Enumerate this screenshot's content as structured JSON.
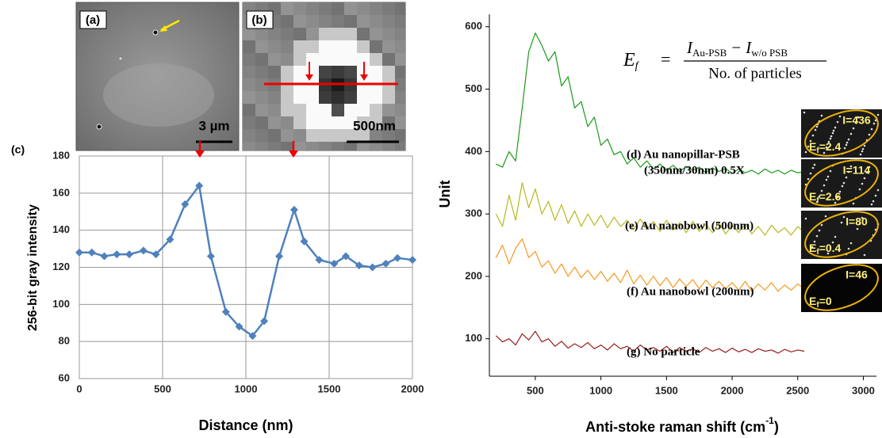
{
  "panels": {
    "a": {
      "label": "(a)",
      "scale": "3 µm"
    },
    "b": {
      "label": "(b)",
      "scale": "500nm"
    }
  },
  "chart_data": [
    {
      "type": "line",
      "panel_label": "(c)",
      "x_label": "Distance (nm)",
      "y_label": "256-bit gray intensity",
      "x": [
        0,
        75,
        150,
        225,
        300,
        385,
        460,
        545,
        635,
        720,
        790,
        880,
        960,
        1040,
        1110,
        1200,
        1290,
        1350,
        1440,
        1530,
        1600,
        1680,
        1760,
        1840,
        1910,
        2000
      ],
      "series": [
        {
          "color": "#4f81bd",
          "values": [
            128,
            128,
            126,
            127,
            127,
            129,
            127,
            135,
            154,
            164,
            126,
            96,
            88,
            83,
            91,
            126,
            151,
            134,
            124,
            122,
            126,
            121,
            120,
            122,
            125,
            124
          ]
        }
      ],
      "xlim": [
        0,
        2000
      ],
      "ylim": [
        60,
        180
      ],
      "xticks": [
        0,
        500,
        1000,
        1500,
        2000
      ],
      "yticks": [
        60,
        80,
        100,
        120,
        140,
        160,
        180
      ],
      "grid": true,
      "markers": "diamond"
    },
    {
      "type": "line",
      "x_label": "Anti-stoke raman shift (cm",
      "x_label_sup": "-1",
      "x_label_end": ")",
      "y_label": "Unit",
      "x": [
        200,
        250,
        300,
        350,
        400,
        450,
        500,
        550,
        600,
        650,
        700,
        750,
        800,
        850,
        900,
        950,
        1000,
        1050,
        1100,
        1150,
        1200,
        1250,
        1300,
        1350,
        1400,
        1450,
        1500,
        1550,
        1600,
        1650,
        1700,
        1750,
        1800,
        1850,
        1900,
        1950,
        2000,
        2050,
        2100,
        2150,
        2200,
        2250,
        2300,
        2350,
        2400,
        2450,
        2500,
        2550
      ],
      "series": [
        {
          "color": "#1a9a1a",
          "values": [
            380,
            375,
            400,
            385,
            470,
            560,
            590,
            570,
            545,
            560,
            505,
            520,
            470,
            480,
            440,
            455,
            410,
            420,
            395,
            400,
            380,
            390,
            375,
            385,
            372,
            380,
            370,
            378,
            368,
            376,
            370,
            375,
            366,
            374,
            368,
            373,
            365,
            372,
            366,
            370,
            364,
            372,
            366,
            370,
            364,
            370,
            366,
            368
          ]
        },
        {
          "color": "#b8b81e",
          "values": [
            300,
            280,
            330,
            290,
            350,
            310,
            340,
            300,
            320,
            290,
            315,
            285,
            305,
            280,
            300,
            282,
            298,
            278,
            295,
            280,
            290,
            275,
            292,
            276,
            288,
            272,
            290,
            274,
            286,
            270,
            288,
            272,
            284,
            270,
            286,
            268,
            282,
            270,
            284,
            268,
            280,
            266,
            282,
            270,
            278,
            266,
            280,
            270
          ]
        },
        {
          "color": "#f79a1e",
          "values": [
            230,
            250,
            220,
            245,
            260,
            230,
            240,
            215,
            225,
            205,
            220,
            200,
            215,
            198,
            210,
            195,
            208,
            192,
            205,
            190,
            210,
            188,
            202,
            186,
            200,
            185,
            198,
            182,
            196,
            184,
            195,
            180,
            194,
            182,
            192,
            180,
            190,
            178,
            192,
            176,
            188,
            178,
            190,
            176,
            186,
            178,
            188,
            180
          ]
        },
        {
          "color": "#9b1c1c",
          "values": [
            105,
            95,
            100,
            90,
            108,
            98,
            112,
            95,
            100,
            88,
            96,
            85,
            92,
            86,
            94,
            84,
            90,
            82,
            92,
            84,
            88,
            80,
            90,
            82,
            86,
            80,
            88,
            78,
            86,
            80,
            84,
            78,
            86,
            80,
            84,
            78,
            85,
            79,
            83,
            78,
            84,
            80,
            82,
            77,
            83,
            79,
            82,
            80
          ]
        }
      ],
      "xlim": [
        150,
        3100
      ],
      "ylim": [
        40,
        620
      ],
      "xticks": [
        500,
        1000,
        1500,
        2000,
        2500,
        3000
      ],
      "yticks": [
        100,
        200,
        300,
        400,
        500,
        600
      ],
      "grid": false,
      "annotations": [
        "(d) Au nanopillar-PSB",
        "(350nm/30nm) 0.5X",
        "(e) Au nanobowl (500nm)",
        "(f) Au nanobowl (200nm)",
        "(g) No particle"
      ],
      "formula": {
        "E": "E",
        "E_sub": "f",
        "eq": "=",
        "I1": "I",
        "I1_sub": "Au-PSB",
        "minus": "−",
        "I2": "I",
        "I2_sub": "w/o PSB",
        "denominator": "No. of particles"
      },
      "insets": [
        {
          "I": "I=436",
          "E": "E",
          "E_sub": "f",
          "E_value": "=2.4"
        },
        {
          "I": "I=114",
          "E": "E",
          "E_sub": "f",
          "E_value": "=2.6"
        },
        {
          "I": "I=80",
          "E": "E",
          "E_sub": "f",
          "E_value": "=0.4"
        },
        {
          "I": "I=46",
          "E": "E",
          "E_sub": "f",
          "E_value": "=0"
        }
      ]
    }
  ]
}
